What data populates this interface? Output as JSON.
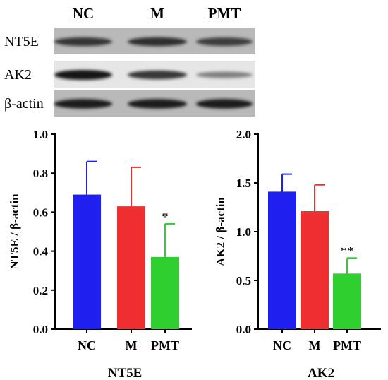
{
  "blot": {
    "lanes": [
      "NC",
      "M",
      "PMT"
    ],
    "rows": [
      {
        "label": "NT5E",
        "intensities": [
          0.82,
          0.85,
          0.78
        ]
      },
      {
        "label": "AK2",
        "intensities": [
          1.0,
          0.8,
          0.4
        ]
      },
      {
        "label": "β-actin",
        "intensities": [
          0.95,
          0.95,
          0.95
        ]
      }
    ]
  },
  "chart_data": [
    {
      "type": "bar",
      "title": "NT5E",
      "ylabel": "NT5E / β-actin",
      "categories": [
        "NC",
        "M",
        "PMT"
      ],
      "values": [
        0.69,
        0.63,
        0.37
      ],
      "errors": [
        0.17,
        0.2,
        0.17
      ],
      "significance": [
        "",
        "",
        "*"
      ],
      "colors": [
        "#1f1fef",
        "#ef2f2f",
        "#2fcf2f"
      ],
      "ylim": [
        0,
        1.0
      ],
      "yticks": [
        0.0,
        0.2,
        0.4,
        0.6,
        0.8,
        1.0
      ],
      "ytick_labels": [
        "0.0",
        "0.2",
        "0.4",
        "0.6",
        "0.8",
        "1.0"
      ]
    },
    {
      "type": "bar",
      "title": "AK2",
      "ylabel": "AK2 / β-actin",
      "categories": [
        "NC",
        "M",
        "PMT"
      ],
      "values": [
        1.41,
        1.21,
        0.57
      ],
      "errors": [
        0.18,
        0.27,
        0.16
      ],
      "significance": [
        "",
        "",
        "**"
      ],
      "colors": [
        "#1f1fef",
        "#ef2f2f",
        "#2fcf2f"
      ],
      "ylim": [
        0,
        2.0
      ],
      "yticks": [
        0.0,
        0.5,
        1.0,
        1.5,
        2.0
      ],
      "ytick_labels": [
        "0.0",
        "0.5",
        "1.0",
        "1.5",
        "2.0"
      ]
    }
  ]
}
